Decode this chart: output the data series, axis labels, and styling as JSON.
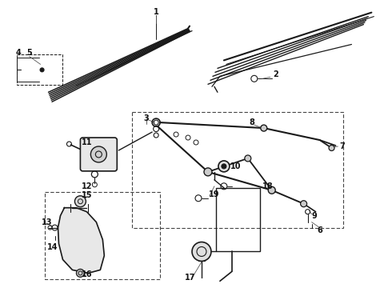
{
  "bg_color": "#ffffff",
  "lc": "#1a1a1a",
  "tc": "#111111",
  "fig_width": 4.9,
  "fig_height": 3.6,
  "dpi": 100
}
